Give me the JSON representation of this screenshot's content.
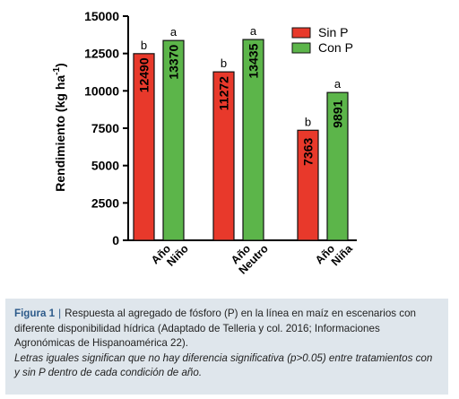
{
  "chart_data": {
    "type": "bar",
    "ylabel": "Rendimiento (kg ha-1)",
    "ylabel_parts": {
      "main": "Rendimiento (kg ha",
      "sup": "-1",
      "close": ")"
    },
    "ylim": [
      0,
      15000
    ],
    "yticks": [
      0,
      2500,
      5000,
      7500,
      10000,
      12500,
      15000
    ],
    "ytick_labels": [
      "0",
      "2500",
      "5000",
      "7500",
      "10000",
      "12500",
      "15000"
    ],
    "categories": [
      {
        "line1": "Año",
        "line2": "Niño"
      },
      {
        "line1": "Año",
        "line2": "Neutro"
      },
      {
        "line1": "Año",
        "line2": "Niña"
      }
    ],
    "series": [
      {
        "name": "Sin P",
        "color": "#e8392b",
        "values": [
          12490,
          11272,
          7363
        ],
        "letters": [
          "b",
          "b",
          "b"
        ]
      },
      {
        "name": "Con P",
        "color": "#5cb54a",
        "values": [
          13370,
          13435,
          9891
        ],
        "letters": [
          "a",
          "a",
          "a"
        ]
      }
    ],
    "legend_position": "top-right",
    "grid": false
  },
  "caption": {
    "label": "Figura 1",
    "separator": "|",
    "text": "Respuesta al agregado de fósforo (P) en la línea en maíz en escenarios con diferente disponibilidad hídrica (Adaptado de Telleria y col. 2016; Informaciones Agronómicas de Hispanoamérica 22).",
    "note": "Letras iguales significan que no hay diferencia significativa (p>0.05) entre tratamientos con y sin P dentro de cada condición de año."
  }
}
